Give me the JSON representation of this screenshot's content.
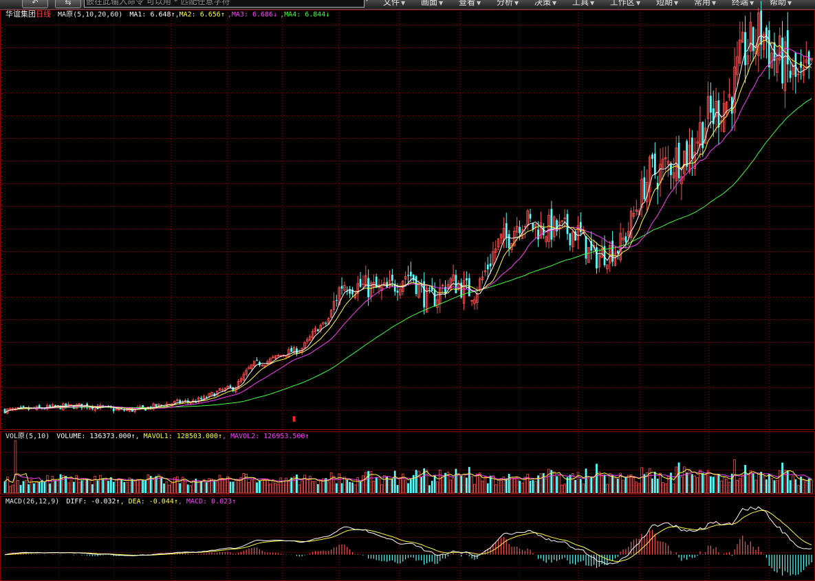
{
  "toolbar": {
    "back_label": "↶",
    "fwd_label": "⇆",
    "command_placeholder": "嵌在此输入命令   可以用 * 匹配任意字符",
    "menus": [
      "文件",
      "画面",
      "查看",
      "分析",
      "决策",
      "工具",
      "工作区",
      "短期",
      "常用",
      "终端",
      "帮助"
    ]
  },
  "stock": {
    "name": "华谊集团",
    "period": "日线"
  },
  "ma_legend": {
    "title": "MA原(5,10,20,60)",
    "items": [
      {
        "label": "MA1: 6.648↑",
        "color": "#ffffff"
      },
      {
        "label": ",MA2: 6.656↑",
        "color": "#ffff40"
      },
      {
        "label": ",MA3: 6.686↓",
        "color": "#ff40ff"
      },
      {
        "label": ",MA4: 6.844↓",
        "color": "#40ff40"
      }
    ]
  },
  "vol_legend": {
    "title": "VOL原(5,10)",
    "items": [
      {
        "label": "VOLUME: 136373.000↑",
        "color": "#ffffff"
      },
      {
        "label": ", MAVOL1: 128503.000↑",
        "color": "#ffff40"
      },
      {
        "label": ", MAVOL2: 126953.500↑",
        "color": "#ff40ff"
      }
    ]
  },
  "macd_legend": {
    "title": "MACD(26,12,9)",
    "items": [
      {
        "label": "DIFF: -0.032↑",
        "color": "#ffffff"
      },
      {
        "label": ", DEA: -0.044↑",
        "color": "#ffff40"
      },
      {
        "label": ", MACD: 0.023↑",
        "color": "#ff40ff"
      }
    ]
  },
  "colors": {
    "up": "#ff5050",
    "down": "#54ffff",
    "grid": "#8a0000",
    "ma1": "#ffffff",
    "ma2": "#ffff40",
    "ma3": "#ff40ff",
    "ma4": "#40ff40"
  },
  "chart_data": {
    "type": "candlestick",
    "price_anchors": [
      [
        0,
        2.8
      ],
      [
        30,
        2.85
      ],
      [
        45,
        2.8
      ],
      [
        70,
        2.9
      ],
      [
        85,
        3.05
      ],
      [
        95,
        3.35
      ],
      [
        110,
        3.5
      ],
      [
        120,
        3.8
      ],
      [
        128,
        4.3
      ],
      [
        135,
        4.25
      ],
      [
        143,
        4.2
      ],
      [
        152,
        4.4
      ],
      [
        160,
        4.1
      ],
      [
        168,
        4.3
      ],
      [
        176,
        4.2
      ],
      [
        188,
        4.8
      ],
      [
        195,
        5.05
      ],
      [
        200,
        4.95
      ],
      [
        215,
        4.9
      ],
      [
        222,
        4.6
      ],
      [
        230,
        4.7
      ],
      [
        245,
        5.6
      ],
      [
        256,
        5.8
      ],
      [
        266,
        6.25
      ],
      [
        272,
        6.45
      ],
      [
        280,
        7.05
      ],
      [
        285,
        7.25
      ],
      [
        290,
        6.95
      ],
      [
        300,
        6.65
      ],
      [
        305,
        6.75
      ]
    ],
    "candle_count": 305
  }
}
